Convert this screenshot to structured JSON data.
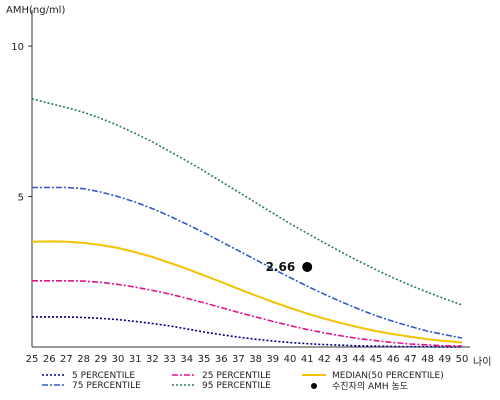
{
  "chart_data": {
    "type": "line",
    "ylabel": "AMH(ng/ml)",
    "xlabel": "나이",
    "xlim": [
      25,
      50
    ],
    "ylim": [
      0,
      11.2
    ],
    "x_ticks": [
      25,
      26,
      27,
      28,
      29,
      30,
      31,
      32,
      33,
      34,
      35,
      36,
      37,
      38,
      39,
      40,
      41,
      42,
      43,
      44,
      45,
      46,
      47,
      48,
      49,
      50
    ],
    "y_ticks": [
      5,
      10
    ],
    "x": [
      25,
      26,
      27,
      28,
      29,
      30,
      31,
      32,
      33,
      34,
      35,
      36,
      37,
      38,
      39,
      40,
      41,
      42,
      43,
      44,
      45,
      46,
      47,
      48,
      49,
      50
    ],
    "series": [
      {
        "name": "5 PERCENTILE",
        "color": "#000080",
        "dash": "2,2",
        "values": [
          1.0,
          1.0,
          1.0,
          0.98,
          0.95,
          0.91,
          0.85,
          0.78,
          0.7,
          0.6,
          0.5,
          0.41,
          0.33,
          0.26,
          0.2,
          0.15,
          0.11,
          0.08,
          0.06,
          0.04,
          0.03,
          0.02,
          0.01,
          0.01,
          0.0,
          0.0
        ]
      },
      {
        "name": "25 PERCENTILE",
        "color": "#e0148c",
        "dash": "6,2,2,2",
        "values": [
          2.2,
          2.2,
          2.2,
          2.19,
          2.15,
          2.08,
          1.99,
          1.88,
          1.76,
          1.62,
          1.47,
          1.31,
          1.15,
          1.0,
          0.85,
          0.71,
          0.58,
          0.47,
          0.37,
          0.28,
          0.21,
          0.15,
          0.1,
          0.07,
          0.04,
          0.03
        ]
      },
      {
        "name": "MEDIAN(50 PERCENTILE)",
        "color": "#f2c200",
        "dash": "",
        "values": [
          3.5,
          3.51,
          3.5,
          3.46,
          3.39,
          3.29,
          3.15,
          2.99,
          2.8,
          2.6,
          2.38,
          2.16,
          1.93,
          1.71,
          1.5,
          1.3,
          1.11,
          0.94,
          0.79,
          0.65,
          0.53,
          0.43,
          0.34,
          0.26,
          0.2,
          0.15
        ]
      },
      {
        "name": "75 PERCENTILE",
        "color": "#3557c9",
        "dash": "6,2,2,2",
        "values": [
          5.3,
          5.3,
          5.3,
          5.26,
          5.15,
          5.0,
          4.82,
          4.6,
          4.35,
          4.08,
          3.8,
          3.5,
          3.2,
          2.9,
          2.6,
          2.31,
          2.02,
          1.75,
          1.5,
          1.26,
          1.04,
          0.85,
          0.68,
          0.53,
          0.41,
          0.3
        ]
      },
      {
        "name": "95 PERCENTILE",
        "color": "#2e7d52",
        "dash": "2,2",
        "values": [
          8.25,
          8.1,
          7.96,
          7.8,
          7.6,
          7.36,
          7.1,
          6.82,
          6.5,
          6.18,
          5.85,
          5.5,
          5.15,
          4.8,
          4.45,
          4.1,
          3.78,
          3.46,
          3.15,
          2.85,
          2.57,
          2.3,
          2.05,
          1.82,
          1.6,
          1.4
        ]
      }
    ],
    "annotation": {
      "label": "2.66",
      "x": 41,
      "y": 2.66,
      "legend": "수진자의 AMH 농도"
    },
    "legend_position": "bottom"
  }
}
